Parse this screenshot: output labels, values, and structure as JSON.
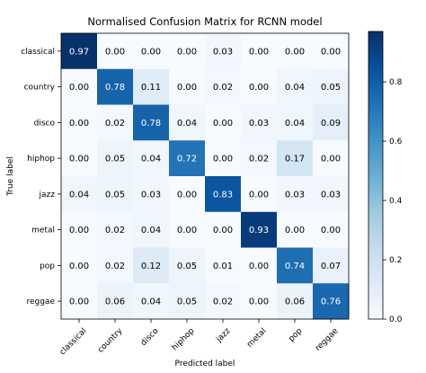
{
  "chart_data": {
    "type": "heatmap",
    "title": "Normalised Confusion Matrix for RCNN model",
    "xlabel": "Predicted label",
    "ylabel": "True label",
    "x_categories": [
      "classical",
      "country",
      "disco",
      "hiphop",
      "jazz",
      "metal",
      "pop",
      "reggae"
    ],
    "y_categories": [
      "classical",
      "country",
      "disco",
      "hiphop",
      "jazz",
      "metal",
      "pop",
      "reggae"
    ],
    "values": [
      [
        0.97,
        0.0,
        0.0,
        0.0,
        0.03,
        0.0,
        0.0,
        0.0
      ],
      [
        0.0,
        0.78,
        0.11,
        0.0,
        0.02,
        0.0,
        0.04,
        0.05
      ],
      [
        0.0,
        0.02,
        0.78,
        0.04,
        0.0,
        0.03,
        0.04,
        0.09
      ],
      [
        0.0,
        0.05,
        0.04,
        0.72,
        0.0,
        0.02,
        0.17,
        0.0
      ],
      [
        0.04,
        0.05,
        0.03,
        0.0,
        0.83,
        0.0,
        0.03,
        0.03
      ],
      [
        0.0,
        0.02,
        0.04,
        0.0,
        0.0,
        0.93,
        0.0,
        0.0
      ],
      [
        0.0,
        0.02,
        0.12,
        0.05,
        0.01,
        0.0,
        0.74,
        0.07
      ],
      [
        0.0,
        0.06,
        0.04,
        0.05,
        0.02,
        0.0,
        0.06,
        0.76
      ]
    ],
    "colormap": "Blues",
    "colorbar": {
      "range": [
        0.0,
        0.97
      ],
      "ticks": [
        0.0,
        0.2,
        0.4,
        0.6,
        0.8
      ],
      "tick_labels": [
        "0.0",
        "0.2",
        "0.4",
        "0.6",
        "0.8"
      ]
    },
    "text_color_dark": "#000000",
    "text_color_light": "#ffffff",
    "grid": false
  }
}
